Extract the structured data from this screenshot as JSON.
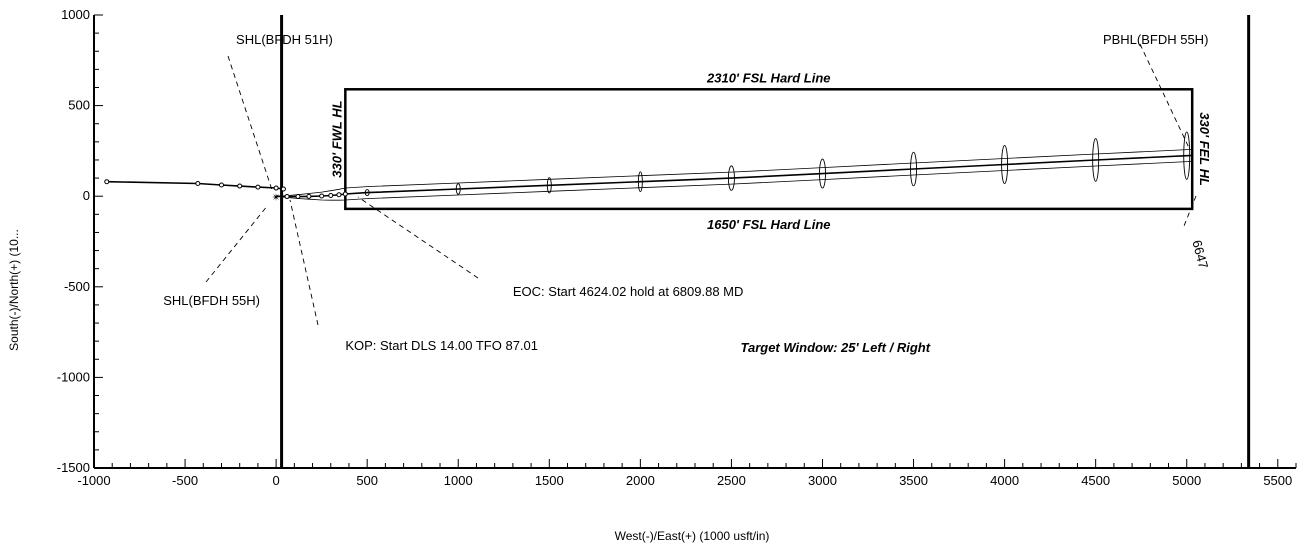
{
  "chart_data": {
    "type": "line",
    "title": "",
    "xlabel": "West(-)/East(+) (1000 usft/in)",
    "ylabel": "South(-)/North(+) (10...",
    "xlim": [
      -1000,
      5600
    ],
    "ylim": [
      -1500,
      1000
    ],
    "x_ticks": [
      -1000,
      -500,
      0,
      500,
      1000,
      1500,
      2000,
      2500,
      3000,
      3500,
      4000,
      4500,
      5000,
      5500
    ],
    "y_ticks": [
      -1500,
      -1000,
      -500,
      0,
      500,
      1000
    ],
    "grid": false,
    "lease_lines_x": [
      30,
      5340
    ],
    "hard_line_box": {
      "x": [
        380,
        5030
      ],
      "y": [
        -70,
        590
      ],
      "labels": {
        "top": "2310' FSL Hard Line",
        "bottom": "1650' FSL Hard Line",
        "left": "330' FWL HL",
        "right": "330' FEL HL"
      }
    },
    "series": [
      {
        "name": "BFDH 55H",
        "points": [
          [
            0,
            0
          ],
          [
            60,
            -2
          ],
          [
            120,
            -2
          ],
          [
            180,
            -1
          ],
          [
            250,
            1
          ],
          [
            300,
            4
          ],
          [
            345,
            8
          ],
          [
            380,
            12
          ],
          [
            500,
            20
          ],
          [
            1000,
            40
          ],
          [
            1500,
            60
          ],
          [
            2000,
            80
          ],
          [
            2500,
            100
          ],
          [
            3000,
            125
          ],
          [
            3500,
            150
          ],
          [
            4000,
            175
          ],
          [
            4500,
            200
          ],
          [
            5030,
            225
          ]
        ]
      },
      {
        "name": "BFDH 51H",
        "points": [
          [
            -930,
            80
          ],
          [
            -430,
            70
          ],
          [
            -300,
            62
          ],
          [
            -200,
            56
          ],
          [
            -100,
            50
          ],
          [
            0,
            45
          ],
          [
            40,
            40
          ]
        ]
      }
    ],
    "uncertainty_ellipses_x": [
      500,
      1000,
      1500,
      2000,
      2500,
      3000,
      3500,
      4000,
      4500,
      5000
    ],
    "annotations": [
      {
        "text": "SHL(BFDH 51H)",
        "x": -220,
        "y": 840
      },
      {
        "text": "PBHL(BFDH 55H)",
        "x": 4540,
        "y": 840
      },
      {
        "text": "SHL(BFDH 55H)",
        "x": -620,
        "y": -600
      },
      {
        "text": "EOC: Start 4624.02 hold at 6809.88 MD",
        "x": 1300,
        "y": -550
      },
      {
        "text": "KOP: Start DLS 14.00 TFO 87.01",
        "x": 380,
        "y": -850
      },
      {
        "text": "Target Window: 25' Left / Right",
        "x": 2550,
        "y": -860
      },
      {
        "text": "6647",
        "x": 5030,
        "y": -250
      }
    ]
  }
}
